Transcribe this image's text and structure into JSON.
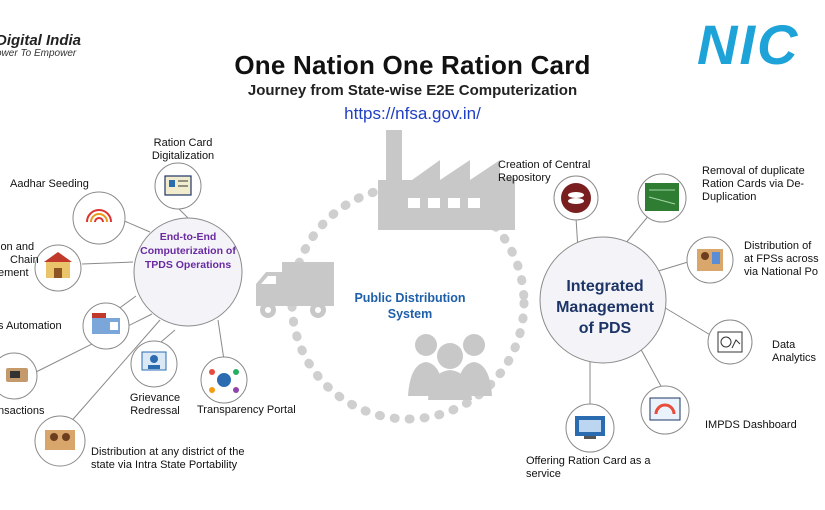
{
  "header": {
    "digital_india_title": "Digital India",
    "digital_india_tagline": "ower To Empower",
    "nic_logo": "NIC"
  },
  "title": "One Nation One Ration Card",
  "subtitle": "Journey from State-wise E2E Computerization",
  "url": "https://nfsa.gov.in/",
  "center": {
    "label_line1": "Public Distribution",
    "label_line2": "System"
  },
  "left_hub": {
    "line1": "End-to-End",
    "line2": "Computerization of",
    "line3": "TPDS Operations",
    "color": "#6a2aa0"
  },
  "right_hub": {
    "line1": "Integrated",
    "line2": "Management",
    "line3": "of PDS",
    "color": "#1d3566"
  },
  "left_nodes": {
    "ration_card_digitalization": [
      "Ration Card",
      "Digitalization"
    ],
    "aadhar_seeding": "Aadhar Seeding",
    "supply_chain": [
      "ion and",
      "Chain",
      "ement"
    ],
    "fps_automation": "s Automation",
    "transactions": "nsactions",
    "grievance": [
      "Grievance",
      "Redressal"
    ],
    "transparency": "Transparency Portal",
    "intra_state": [
      "Distribution at any district of the",
      "state via Intra State Portability"
    ]
  },
  "right_nodes": {
    "central_repository": [
      "Creation of Central",
      "Repository"
    ],
    "deduplication": [
      "Removal of duplicate",
      "Ration Cards via De-",
      "Duplication"
    ],
    "national_portability": [
      "Distribution of",
      "at FPSs across",
      "via National Po"
    ],
    "data_analytics": [
      "Data",
      "Analytics"
    ],
    "impds_dashboard": "IMPDS Dashboard",
    "ration_card_service": [
      "Offering Ration Card as a",
      "service"
    ]
  },
  "colors": {
    "url": "#1f3fc4",
    "nic_blue": "#1ea3d8",
    "node_border": "#8a8a8a",
    "hub_fill": "#f3f3f8",
    "dashed_ring": "#c9c9c9",
    "center_icons": "#c8c8c8"
  }
}
